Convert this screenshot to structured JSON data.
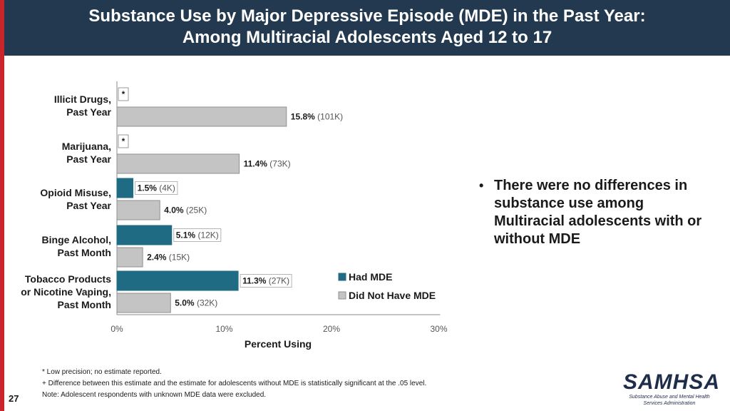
{
  "title": {
    "line1": "Substance Use by Major Depressive Episode (MDE) in the Past Year:",
    "line2": "Among Multiracial Adolescents Aged 12 to 17"
  },
  "colors": {
    "had_mde": "#1f6b84",
    "no_mde": "#c4c4c4",
    "title_bg": "#23394f",
    "accent": "#c8262a"
  },
  "chart_data": {
    "type": "bar",
    "orientation": "horizontal",
    "categories": [
      [
        "Illicit Drugs,",
        "Past Year"
      ],
      [
        "Marijuana,",
        "Past Year"
      ],
      [
        "Opioid Misuse,",
        "Past Year"
      ],
      [
        "Binge Alcohol,",
        "Past Month"
      ],
      [
        "Tobacco Products",
        "or Nicotine Vaping,",
        "Past Month"
      ]
    ],
    "series": [
      {
        "name": "Had MDE",
        "values": [
          null,
          null,
          1.5,
          5.1,
          11.3
        ],
        "labels": [
          "*",
          "*",
          "1.5%",
          "5.1%",
          "11.3%"
        ],
        "counts": [
          null,
          null,
          "(4K)",
          "(12K)",
          "(27K)"
        ]
      },
      {
        "name": "Did Not Have MDE",
        "values": [
          15.8,
          11.4,
          4.0,
          2.4,
          5.0
        ],
        "labels": [
          "15.8%",
          "11.4%",
          "4.0%",
          "2.4%",
          "5.0%"
        ],
        "counts": [
          "(101K)",
          "(73K)",
          "(25K)",
          "(15K)",
          "(32K)"
        ]
      }
    ],
    "xlabel": "Percent Using",
    "xlim": [
      0,
      30
    ],
    "xticks": [
      0,
      10,
      20,
      30
    ],
    "xtick_labels": [
      "0%",
      "10%",
      "20%",
      "30%"
    ],
    "legend": [
      "Had MDE",
      "Did Not Have MDE"
    ]
  },
  "bullet": "There were no differences in substance use among Multiracial adolescents with or without MDE",
  "footnotes": [
    "* Low precision; no estimate reported.",
    "+ Difference between this estimate and the estimate for adolescents without MDE is statistically significant at the .05 level.",
    "Note: Adolescent respondents with unknown MDE data were excluded."
  ],
  "page_number": "27",
  "logo": {
    "name": "SAMHSA",
    "line1": "Substance Abuse and Mental Health",
    "line2": "Services Administration"
  }
}
